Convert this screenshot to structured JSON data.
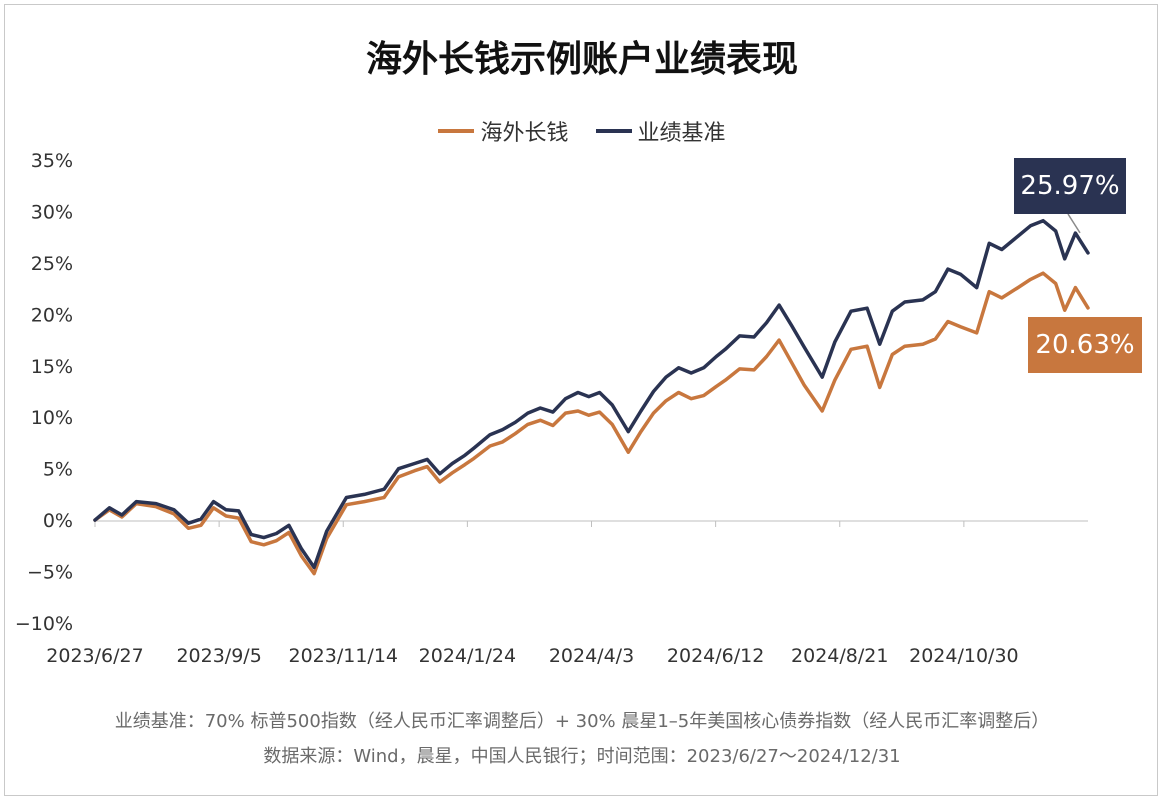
{
  "chart_data": {
    "type": "line",
    "title": "海外长钱示例账户业绩表现",
    "ylim": [
      -10,
      35
    ],
    "y_ticks": [
      35,
      30,
      25,
      20,
      15,
      10,
      5,
      0,
      -5,
      -10
    ],
    "y_tick_labels": [
      "35%",
      "30%",
      "25%",
      "20%",
      "15%",
      "10%",
      "5%",
      "0%",
      "−5%",
      "−10%"
    ],
    "x_tick_labels": [
      "2023/6/27",
      "2023/9/5",
      "2023/11/14",
      "2024/1/24",
      "2024/4/3",
      "2024/6/12",
      "2024/8/21",
      "2024/10/30"
    ],
    "x_range": [
      "2023-06-27",
      "2024-12-31"
    ],
    "grid": false,
    "legend_position": "top-center",
    "series": [
      {
        "name": "海外长钱",
        "color": "#C8773E",
        "points": [
          [
            "2023-06-27",
            0.0
          ],
          [
            "2023-07-05",
            1.0
          ],
          [
            "2023-07-12",
            0.3
          ],
          [
            "2023-07-20",
            1.6
          ],
          [
            "2023-07-31",
            1.3
          ],
          [
            "2023-08-10",
            0.6
          ],
          [
            "2023-08-18",
            -0.8
          ],
          [
            "2023-08-25",
            -0.5
          ],
          [
            "2023-09-01",
            1.2
          ],
          [
            "2023-09-08",
            0.4
          ],
          [
            "2023-09-15",
            0.2
          ],
          [
            "2023-09-22",
            -2.1
          ],
          [
            "2023-09-29",
            -2.4
          ],
          [
            "2023-10-06",
            -2.0
          ],
          [
            "2023-10-13",
            -1.2
          ],
          [
            "2023-10-20",
            -3.5
          ],
          [
            "2023-10-27",
            -5.2
          ],
          [
            "2023-11-03",
            -1.8
          ],
          [
            "2023-11-14",
            1.5
          ],
          [
            "2023-11-24",
            1.8
          ],
          [
            "2023-12-05",
            2.2
          ],
          [
            "2023-12-13",
            4.2
          ],
          [
            "2023-12-22",
            4.8
          ],
          [
            "2023-12-29",
            5.2
          ],
          [
            "2024-01-05",
            3.7
          ],
          [
            "2024-01-12",
            4.6
          ],
          [
            "2024-01-19",
            5.4
          ],
          [
            "2024-01-24",
            6.0
          ],
          [
            "2024-02-02",
            7.2
          ],
          [
            "2024-02-09",
            7.6
          ],
          [
            "2024-02-16",
            8.4
          ],
          [
            "2024-02-23",
            9.3
          ],
          [
            "2024-03-01",
            9.7
          ],
          [
            "2024-03-08",
            9.2
          ],
          [
            "2024-03-15",
            10.4
          ],
          [
            "2024-03-22",
            10.6
          ],
          [
            "2024-03-28",
            10.2
          ],
          [
            "2024-04-03",
            10.5
          ],
          [
            "2024-04-10",
            9.3
          ],
          [
            "2024-04-19",
            6.6
          ],
          [
            "2024-04-26",
            8.6
          ],
          [
            "2024-05-03",
            10.4
          ],
          [
            "2024-05-10",
            11.6
          ],
          [
            "2024-05-17",
            12.4
          ],
          [
            "2024-05-24",
            11.8
          ],
          [
            "2024-05-31",
            12.1
          ],
          [
            "2024-06-07",
            13.0
          ],
          [
            "2024-06-12",
            13.6
          ],
          [
            "2024-06-20",
            14.7
          ],
          [
            "2024-06-28",
            14.6
          ],
          [
            "2024-07-05",
            15.9
          ],
          [
            "2024-07-12",
            17.5
          ],
          [
            "2024-07-19",
            15.3
          ],
          [
            "2024-07-26",
            13.1
          ],
          [
            "2024-08-05",
            10.6
          ],
          [
            "2024-08-12",
            13.6
          ],
          [
            "2024-08-21",
            16.6
          ],
          [
            "2024-08-30",
            16.9
          ],
          [
            "2024-09-06",
            12.9
          ],
          [
            "2024-09-13",
            16.1
          ],
          [
            "2024-09-20",
            16.9
          ],
          [
            "2024-09-30",
            17.1
          ],
          [
            "2024-10-07",
            17.6
          ],
          [
            "2024-10-14",
            19.3
          ],
          [
            "2024-10-21",
            18.8
          ],
          [
            "2024-10-30",
            18.2
          ],
          [
            "2024-11-06",
            22.2
          ],
          [
            "2024-11-13",
            21.6
          ],
          [
            "2024-11-22",
            22.6
          ],
          [
            "2024-11-29",
            23.4
          ],
          [
            "2024-12-06",
            24.0
          ],
          [
            "2024-12-13",
            23.0
          ],
          [
            "2024-12-18",
            20.4
          ],
          [
            "2024-12-24",
            22.6
          ],
          [
            "2024-12-31",
            20.63
          ]
        ]
      },
      {
        "name": "业绩基准",
        "color": "#2A3352",
        "points": [
          [
            "2023-06-27",
            0.0
          ],
          [
            "2023-07-05",
            1.2
          ],
          [
            "2023-07-12",
            0.5
          ],
          [
            "2023-07-20",
            1.8
          ],
          [
            "2023-07-31",
            1.6
          ],
          [
            "2023-08-10",
            1.0
          ],
          [
            "2023-08-18",
            -0.3
          ],
          [
            "2023-08-25",
            0.1
          ],
          [
            "2023-09-01",
            1.8
          ],
          [
            "2023-09-08",
            1.0
          ],
          [
            "2023-09-15",
            0.9
          ],
          [
            "2023-09-22",
            -1.4
          ],
          [
            "2023-09-29",
            -1.7
          ],
          [
            "2023-10-06",
            -1.3
          ],
          [
            "2023-10-13",
            -0.5
          ],
          [
            "2023-10-20",
            -2.8
          ],
          [
            "2023-10-27",
            -4.6
          ],
          [
            "2023-11-03",
            -1.1
          ],
          [
            "2023-11-14",
            2.2
          ],
          [
            "2023-11-24",
            2.5
          ],
          [
            "2023-12-05",
            3.0
          ],
          [
            "2023-12-13",
            5.0
          ],
          [
            "2023-12-22",
            5.5
          ],
          [
            "2023-12-29",
            5.9
          ],
          [
            "2024-01-05",
            4.5
          ],
          [
            "2024-01-12",
            5.5
          ],
          [
            "2024-01-19",
            6.3
          ],
          [
            "2024-01-24",
            7.0
          ],
          [
            "2024-02-02",
            8.3
          ],
          [
            "2024-02-09",
            8.8
          ],
          [
            "2024-02-16",
            9.5
          ],
          [
            "2024-02-23",
            10.4
          ],
          [
            "2024-03-01",
            10.9
          ],
          [
            "2024-03-08",
            10.5
          ],
          [
            "2024-03-15",
            11.8
          ],
          [
            "2024-03-22",
            12.4
          ],
          [
            "2024-03-28",
            12.0
          ],
          [
            "2024-04-03",
            12.4
          ],
          [
            "2024-04-10",
            11.2
          ],
          [
            "2024-04-19",
            8.6
          ],
          [
            "2024-04-26",
            10.6
          ],
          [
            "2024-05-03",
            12.5
          ],
          [
            "2024-05-10",
            13.9
          ],
          [
            "2024-05-17",
            14.8
          ],
          [
            "2024-05-24",
            14.3
          ],
          [
            "2024-05-31",
            14.8
          ],
          [
            "2024-06-07",
            15.9
          ],
          [
            "2024-06-12",
            16.6
          ],
          [
            "2024-06-20",
            17.9
          ],
          [
            "2024-06-28",
            17.8
          ],
          [
            "2024-07-05",
            19.2
          ],
          [
            "2024-07-12",
            20.9
          ],
          [
            "2024-07-19",
            18.9
          ],
          [
            "2024-07-26",
            16.8
          ],
          [
            "2024-08-05",
            13.9
          ],
          [
            "2024-08-12",
            17.3
          ],
          [
            "2024-08-21",
            20.3
          ],
          [
            "2024-08-30",
            20.6
          ],
          [
            "2024-09-06",
            17.1
          ],
          [
            "2024-09-13",
            20.3
          ],
          [
            "2024-09-20",
            21.2
          ],
          [
            "2024-09-30",
            21.4
          ],
          [
            "2024-10-07",
            22.2
          ],
          [
            "2024-10-14",
            24.4
          ],
          [
            "2024-10-21",
            23.9
          ],
          [
            "2024-10-30",
            22.6
          ],
          [
            "2024-11-06",
            26.9
          ],
          [
            "2024-11-13",
            26.3
          ],
          [
            "2024-11-22",
            27.6
          ],
          [
            "2024-11-29",
            28.6
          ],
          [
            "2024-12-06",
            29.1
          ],
          [
            "2024-12-13",
            28.1
          ],
          [
            "2024-12-18",
            25.4
          ],
          [
            "2024-12-24",
            27.9
          ],
          [
            "2024-12-31",
            25.97
          ]
        ]
      }
    ],
    "annotations": [
      {
        "series": "业绩基准",
        "text": "25.97%",
        "bg": "#2A3352"
      },
      {
        "series": "海外长钱",
        "text": "20.63%",
        "bg": "#C8773E"
      }
    ]
  },
  "footnotes": [
    "业绩基准：70% 标普500指数（经人民币汇率调整后）+ 30% 晨星1–5年美国核心债券指数（经人民币汇率调整后）",
    "数据来源：Wind，晨星，中国人民银行；时间范围：2023/6/27～2024/12/31"
  ]
}
